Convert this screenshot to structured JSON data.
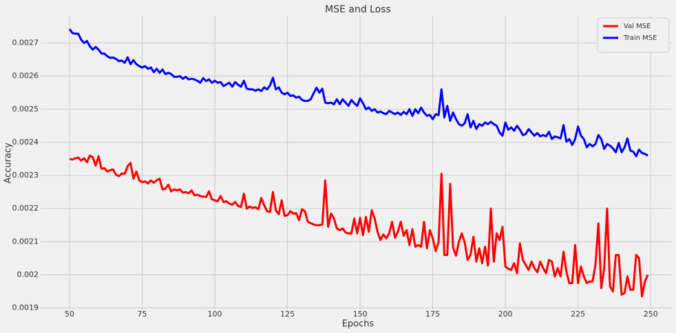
{
  "chart_data": {
    "type": "line",
    "title": "MSE and Loss",
    "xlabel": "Epochs",
    "ylabel": "Accuracy",
    "x": [
      50,
      51,
      52,
      53,
      54,
      55,
      56,
      57,
      58,
      59,
      60,
      61,
      62,
      63,
      64,
      65,
      66,
      67,
      68,
      69,
      70,
      71,
      72,
      73,
      74,
      75,
      76,
      77,
      78,
      79,
      80,
      81,
      82,
      83,
      84,
      85,
      86,
      87,
      88,
      89,
      90,
      91,
      92,
      93,
      94,
      95,
      96,
      97,
      98,
      99,
      100,
      101,
      102,
      103,
      104,
      105,
      106,
      107,
      108,
      109,
      110,
      111,
      112,
      113,
      114,
      115,
      116,
      117,
      118,
      119,
      120,
      121,
      122,
      123,
      124,
      125,
      126,
      127,
      128,
      129,
      130,
      131,
      132,
      133,
      134,
      135,
      136,
      137,
      138,
      139,
      140,
      141,
      142,
      143,
      144,
      145,
      146,
      147,
      148,
      149,
      150,
      151,
      152,
      153,
      154,
      155,
      156,
      157,
      158,
      159,
      160,
      161,
      162,
      163,
      164,
      165,
      166,
      167,
      168,
      169,
      170,
      171,
      172,
      173,
      174,
      175,
      176,
      177,
      178,
      179,
      180,
      181,
      182,
      183,
      184,
      185,
      186,
      187,
      188,
      189,
      190,
      191,
      192,
      193,
      194,
      195,
      196,
      197,
      198,
      199,
      200,
      201,
      202,
      203,
      204,
      205,
      206,
      207,
      208,
      209,
      210,
      211,
      212,
      213,
      214,
      215,
      216,
      217,
      218,
      219,
      220,
      221,
      222,
      223,
      224,
      225,
      226,
      227,
      228,
      229,
      230,
      231,
      232,
      233,
      234,
      235,
      236,
      237,
      238,
      239,
      240,
      241,
      242,
      243,
      244,
      245,
      246,
      247,
      248,
      249
    ],
    "series": [
      {
        "name": "Val MSE",
        "color": "#ff0000",
        "values": [
          0.00235,
          0.002348,
          0.002352,
          0.002354,
          0.002345,
          0.002352,
          0.00234,
          0.00236,
          0.002355,
          0.00233,
          0.002358,
          0.00232,
          0.002322,
          0.002312,
          0.002316,
          0.002318,
          0.002302,
          0.002298,
          0.002306,
          0.002305,
          0.002328,
          0.002338,
          0.00229,
          0.002312,
          0.002285,
          0.00228,
          0.002282,
          0.002276,
          0.002285,
          0.002278,
          0.002286,
          0.00229,
          0.002258,
          0.00226,
          0.002272,
          0.002252,
          0.002258,
          0.002255,
          0.002258,
          0.002248,
          0.00225,
          0.002246,
          0.002255,
          0.00224,
          0.002242,
          0.002238,
          0.002236,
          0.002235,
          0.002252,
          0.002228,
          0.002225,
          0.002222,
          0.002238,
          0.00222,
          0.002222,
          0.002215,
          0.002212,
          0.00222,
          0.002208,
          0.002205,
          0.002245,
          0.0022,
          0.002206,
          0.002202,
          0.002204,
          0.002198,
          0.002232,
          0.00221,
          0.002192,
          0.00219,
          0.00225,
          0.002195,
          0.002183,
          0.002225,
          0.002178,
          0.00218,
          0.002192,
          0.002185,
          0.002186,
          0.002165,
          0.002198,
          0.002192,
          0.00216,
          0.002156,
          0.002152,
          0.00215,
          0.00215,
          0.002152,
          0.002285,
          0.002145,
          0.002185,
          0.00217,
          0.00214,
          0.002135,
          0.00214,
          0.002128,
          0.002125,
          0.002125,
          0.00217,
          0.002125,
          0.002172,
          0.00212,
          0.002175,
          0.00213,
          0.002195,
          0.00217,
          0.00213,
          0.002105,
          0.002122,
          0.00211,
          0.002125,
          0.00216,
          0.002112,
          0.00213,
          0.00216,
          0.002118,
          0.002135,
          0.00209,
          0.002138,
          0.002085,
          0.00209,
          0.002085,
          0.00216,
          0.00208,
          0.002135,
          0.00211,
          0.002072,
          0.002098,
          0.002305,
          0.00206,
          0.00206,
          0.002275,
          0.002082,
          0.002058,
          0.0021,
          0.002125,
          0.002098,
          0.002045,
          0.00206,
          0.002115,
          0.00204,
          0.00208,
          0.002035,
          0.002085,
          0.002028,
          0.0022,
          0.00204,
          0.002125,
          0.002105,
          0.002145,
          0.002025,
          0.002018,
          0.002015,
          0.002035,
          0.002005,
          0.002095,
          0.002045,
          0.00203,
          0.002015,
          0.00204,
          0.00202,
          0.002008,
          0.00204,
          0.00202,
          0.002005,
          0.002045,
          0.00204,
          0.001995,
          0.00202,
          0.001995,
          0.00207,
          0.00201,
          0.001975,
          0.001975,
          0.00209,
          0.001975,
          0.002025,
          0.001995,
          0.001975,
          0.00198,
          0.00198,
          0.00203,
          0.002155,
          0.00196,
          0.00202,
          0.0022,
          0.001965,
          0.00195,
          0.00206,
          0.00206,
          0.00194,
          0.001945,
          0.001995,
          0.001955,
          0.001955,
          0.00206,
          0.00205,
          0.001935,
          0.00198,
          0.002
        ]
      },
      {
        "name": "Train MSE",
        "color": "#0000ff",
        "values": [
          0.002742,
          0.00273,
          0.002728,
          0.002728,
          0.00271,
          0.0027,
          0.002706,
          0.00269,
          0.00268,
          0.002688,
          0.00268,
          0.002668,
          0.002668,
          0.00266,
          0.002655,
          0.002656,
          0.002652,
          0.002645,
          0.002647,
          0.00264,
          0.002657,
          0.002636,
          0.002648,
          0.002636,
          0.00263,
          0.002626,
          0.00263,
          0.002622,
          0.002626,
          0.002612,
          0.002622,
          0.00261,
          0.00262,
          0.002606,
          0.00261,
          0.002606,
          0.002598,
          0.002598,
          0.0026,
          0.002592,
          0.002598,
          0.00259,
          0.002592,
          0.00259,
          0.002586,
          0.00258,
          0.002594,
          0.002585,
          0.00259,
          0.00258,
          0.002586,
          0.00258,
          0.002582,
          0.00257,
          0.002575,
          0.00258,
          0.002568,
          0.002582,
          0.002574,
          0.002568,
          0.002586,
          0.002562,
          0.00256,
          0.00256,
          0.002556,
          0.00256,
          0.002555,
          0.002566,
          0.00256,
          0.002572,
          0.002595,
          0.00256,
          0.002566,
          0.00255,
          0.002545,
          0.00255,
          0.00254,
          0.002542,
          0.002535,
          0.002538,
          0.002528,
          0.002525,
          0.002525,
          0.00253,
          0.002548,
          0.002565,
          0.00255,
          0.002562,
          0.00252,
          0.002518,
          0.00252,
          0.002515,
          0.00253,
          0.002515,
          0.00253,
          0.00252,
          0.00251,
          0.002528,
          0.002518,
          0.00251,
          0.002533,
          0.002518,
          0.0025,
          0.002505,
          0.002495,
          0.0025,
          0.00249,
          0.002493,
          0.002488,
          0.002485,
          0.002495,
          0.00249,
          0.002485,
          0.00249,
          0.002483,
          0.002492,
          0.002485,
          0.0025,
          0.00248,
          0.0025,
          0.002488,
          0.002505,
          0.00249,
          0.00248,
          0.002483,
          0.00247,
          0.002485,
          0.002482,
          0.00256,
          0.002475,
          0.00251,
          0.002465,
          0.00249,
          0.00247,
          0.002455,
          0.00245,
          0.002458,
          0.002485,
          0.002445,
          0.002465,
          0.00244,
          0.002455,
          0.00245,
          0.00246,
          0.002455,
          0.002462,
          0.002455,
          0.00245,
          0.00243,
          0.00242,
          0.00246,
          0.002438,
          0.002445,
          0.002435,
          0.00245,
          0.002438,
          0.002422,
          0.002425,
          0.00244,
          0.00243,
          0.00242,
          0.002428,
          0.002418,
          0.002422,
          0.002418,
          0.002432,
          0.00241,
          0.002418,
          0.002415,
          0.002412,
          0.002452,
          0.002402,
          0.00241,
          0.002392,
          0.00241,
          0.002448,
          0.00242,
          0.00241,
          0.002385,
          0.002395,
          0.002388,
          0.002395,
          0.002422,
          0.00241,
          0.00238,
          0.002395,
          0.00239,
          0.002382,
          0.00237,
          0.002398,
          0.00237,
          0.002385,
          0.002412,
          0.002375,
          0.002372,
          0.002358,
          0.002378,
          0.002368,
          0.002365,
          0.00236
        ]
      }
    ],
    "xlim": [
      40.05,
      258.95
    ],
    "xticks": [
      50,
      75,
      100,
      125,
      150,
      175,
      200,
      225,
      250
    ],
    "ylim": [
      0.001895,
      0.002782
    ],
    "yticks": [
      0.0019,
      0.002,
      0.0021,
      0.0022,
      0.0023,
      0.0024,
      0.0025,
      0.0026,
      0.0027
    ],
    "grid": true,
    "legend": "upper right"
  }
}
